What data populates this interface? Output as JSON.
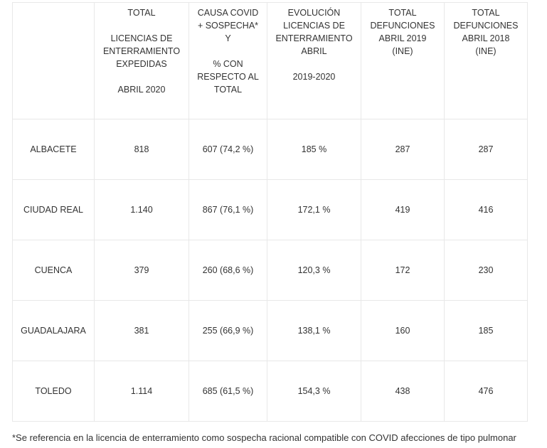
{
  "table": {
    "headers": [
      {
        "lines": []
      },
      {
        "lines": [
          "TOTAL",
          "",
          "LICENCIAS DE",
          "ENTERRAMIENTO",
          "EXPEDIDAS",
          "",
          "ABRIL 2020"
        ]
      },
      {
        "lines": [
          "CAUSA COVID",
          "+ SOSPECHA*",
          "Y",
          "",
          "% CON",
          "RESPECTO AL",
          "TOTAL"
        ]
      },
      {
        "lines": [
          "EVOLUCIÓN",
          "LICENCIAS DE",
          "ENTERRAMIENTO",
          "ABRIL",
          "",
          "2019-2020"
        ]
      },
      {
        "lines": [
          "TOTAL",
          "DEFUNCIONES",
          "ABRIL 2019",
          "(INE)"
        ]
      },
      {
        "lines": [
          "TOTAL",
          "DEFUNCIONES",
          "ABRIL 2018",
          "(INE)"
        ]
      }
    ],
    "rows": [
      [
        "ALBACETE",
        "818",
        "607 (74,2 %)",
        "185 %",
        "287",
        "287"
      ],
      [
        "CIUDAD REAL",
        "1.140",
        "867 (76,1 %)",
        "172,1 %",
        "419",
        "416"
      ],
      [
        "CUENCA",
        "379",
        "260 (68,6 %)",
        "120,3 %",
        "172",
        "230"
      ],
      [
        "GUADALAJARA",
        "381",
        "255 (66,9 %)",
        "138,1 %",
        "160",
        "185"
      ],
      [
        "TOLEDO",
        "1.114",
        "685 (61,5 %)",
        "154,3 %",
        "438",
        "476"
      ]
    ]
  },
  "footnote": "*Se referencia en la licencia de enterramiento como sospecha racional compatible con COVID afecciones de tipo pulmonar"
}
